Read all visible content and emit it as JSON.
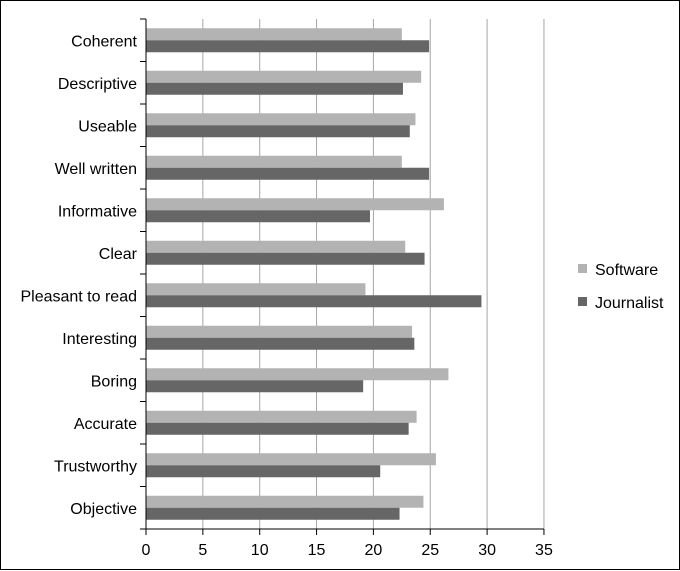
{
  "chart_data": {
    "type": "bar",
    "orientation": "horizontal",
    "categories": [
      "Coherent",
      "Descriptive",
      "Useable",
      "Well written",
      "Informative",
      "Clear",
      "Pleasant to read",
      "Interesting",
      "Boring",
      "Accurate",
      "Trustworthy",
      "Objective"
    ],
    "series": [
      {
        "name": "Software",
        "color": "#b3b3b3",
        "values": [
          22.5,
          24.2,
          23.7,
          22.5,
          26.2,
          22.8,
          19.3,
          23.4,
          26.6,
          23.8,
          25.5,
          24.4
        ]
      },
      {
        "name": "Journalist",
        "color": "#666666",
        "values": [
          24.9,
          22.6,
          23.2,
          24.9,
          19.7,
          24.5,
          29.5,
          23.6,
          19.1,
          23.1,
          20.6,
          22.3
        ]
      }
    ],
    "xlim": [
      0,
      35
    ],
    "xticks": [
      0,
      5,
      10,
      15,
      20,
      25,
      30,
      35
    ],
    "grid": true,
    "legend": "right"
  }
}
